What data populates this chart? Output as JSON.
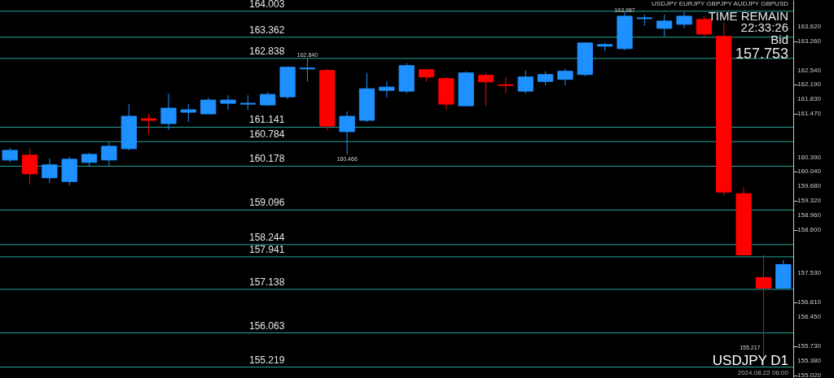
{
  "chart_data": {
    "type": "candlestick",
    "categories": [
      null,
      null,
      null,
      null,
      null,
      null,
      null,
      null,
      null,
      null,
      null,
      null,
      null,
      null,
      null,
      null,
      null,
      null,
      null,
      null,
      null,
      null,
      null,
      null,
      null,
      null,
      null,
      null,
      null,
      null,
      null,
      null,
      null,
      null,
      null,
      null,
      null,
      null,
      null,
      null
    ],
    "ohlc": [
      [
        160.33,
        160.63,
        160.27,
        160.57
      ],
      [
        160.45,
        160.61,
        159.72,
        159.99
      ],
      [
        159.89,
        160.37,
        159.76,
        160.21
      ],
      [
        159.8,
        160.41,
        159.7,
        160.35
      ],
      [
        160.27,
        160.51,
        160.17,
        160.47
      ],
      [
        160.33,
        160.77,
        160.17,
        160.67
      ],
      [
        160.61,
        161.71,
        160.57,
        161.41
      ],
      [
        161.35,
        161.47,
        160.97,
        161.31
      ],
      [
        161.23,
        161.97,
        161.07,
        161.61
      ],
      [
        161.51,
        161.71,
        161.27,
        161.57
      ],
      [
        161.47,
        161.87,
        161.47,
        161.81
      ],
      [
        161.73,
        161.93,
        161.57,
        161.81
      ],
      [
        161.71,
        161.93,
        161.57,
        161.73
      ],
      [
        161.69,
        162.01,
        161.67,
        161.95
      ],
      [
        161.89,
        162.64,
        161.83,
        162.62
      ],
      [
        162.58,
        162.84,
        162.27,
        162.6
      ],
      [
        162.54,
        162.58,
        161.07,
        161.17
      ],
      [
        161.03,
        161.53,
        160.47,
        161.41
      ],
      [
        161.31,
        162.48,
        161.27,
        162.09
      ],
      [
        162.05,
        162.27,
        161.87,
        162.13
      ],
      [
        162.03,
        162.72,
        161.97,
        162.66
      ],
      [
        162.56,
        162.58,
        162.27,
        162.38
      ],
      [
        162.34,
        162.38,
        161.57,
        161.71
      ],
      [
        161.67,
        162.52,
        161.65,
        162.48
      ],
      [
        162.42,
        162.48,
        161.67,
        162.26
      ],
      [
        162.19,
        162.38,
        161.97,
        162.17
      ],
      [
        162.03,
        162.54,
        161.97,
        162.38
      ],
      [
        162.27,
        162.52,
        162.17,
        162.44
      ],
      [
        162.32,
        162.58,
        162.17,
        162.52
      ],
      [
        162.44,
        163.24,
        162.4,
        163.22
      ],
      [
        163.14,
        163.22,
        163.02,
        163.18
      ],
      [
        163.08,
        163.99,
        163.04,
        163.88
      ],
      [
        163.82,
        163.92,
        163.64,
        163.84
      ],
      [
        163.58,
        163.92,
        163.38,
        163.76
      ],
      [
        163.68,
        163.98,
        163.58,
        163.88
      ],
      [
        163.8,
        163.88,
        163.38,
        163.44
      ],
      [
        163.38,
        163.72,
        159.46,
        159.54
      ],
      [
        159.5,
        159.66,
        157.96,
        157.99
      ],
      [
        157.43,
        157.99,
        155.22,
        157.17
      ],
      [
        157.17,
        157.86,
        157.17,
        157.75
      ]
    ],
    "colors": [
      "#1e90ff",
      "#ff0000",
      "#1e90ff",
      "#1e90ff",
      "#1e90ff",
      "#1e90ff",
      "#1e90ff",
      "#ff0000",
      "#1e90ff",
      "#1e90ff",
      "#1e90ff",
      "#1e90ff",
      "#1e90ff",
      "#1e90ff",
      "#1e90ff",
      "#1e90ff",
      "#ff0000",
      "#1e90ff",
      "#1e90ff",
      "#1e90ff",
      "#1e90ff",
      "#ff0000",
      "#ff0000",
      "#1e90ff",
      "#ff0000",
      "#ff0000",
      "#1e90ff",
      "#1e90ff",
      "#1e90ff",
      "#1e90ff",
      "#1e90ff",
      "#1e90ff",
      "#1e90ff",
      "#1e90ff",
      "#1e90ff",
      "#ff0000",
      "#ff0000",
      "#ff0000",
      "#ff0000",
      "#1e90ff"
    ],
    "ylim": [
      154.95,
      164.28
    ],
    "yticks": [
      {
        "value": 163.62,
        "label": "163.620"
      },
      {
        "value": 163.26,
        "label": "163.260"
      },
      {
        "value": 162.54,
        "label": "162.540"
      },
      {
        "value": 162.19,
        "label": "162.190"
      },
      {
        "value": 161.83,
        "label": "161.830"
      },
      {
        "value": 161.47,
        "label": "161.470"
      },
      {
        "value": 160.39,
        "label": "160.390"
      },
      {
        "value": 160.04,
        "label": "160.040"
      },
      {
        "value": 159.68,
        "label": "159.680"
      },
      {
        "value": 159.32,
        "label": "159.320"
      },
      {
        "value": 158.96,
        "label": "158.960"
      },
      {
        "value": 158.6,
        "label": "158.600"
      },
      {
        "value": 157.53,
        "label": "157.530"
      },
      {
        "value": 156.81,
        "label": "156.810"
      },
      {
        "value": 156.45,
        "label": "156.450"
      },
      {
        "value": 155.73,
        "label": "155.730"
      },
      {
        "value": 155.38,
        "label": "155.380"
      },
      {
        "value": 155.02,
        "label": "155.020"
      }
    ],
    "tick_labels": "y",
    "ref_lines": [
      {
        "axis": "y",
        "value": 164.003,
        "label": "164.003",
        "color": "#2aa59a"
      },
      {
        "axis": "y",
        "value": 163.362,
        "label": "163.362",
        "color": "#2aa59a"
      },
      {
        "axis": "y",
        "value": 162.838,
        "label": "162.838",
        "color": "#2aa59a"
      },
      {
        "axis": "y",
        "value": 161.141,
        "label": "161.141",
        "color": "#2aa59a"
      },
      {
        "axis": "y",
        "value": 160.784,
        "label": "160.784",
        "color": "#2aa59a"
      },
      {
        "axis": "y",
        "value": 160.178,
        "label": "160.178",
        "color": "#2aa59a"
      },
      {
        "axis": "y",
        "value": 159.096,
        "label": "159.096",
        "color": "#2aa59a"
      },
      {
        "axis": "y",
        "value": 158.244,
        "label": "158.244",
        "color": "#2aa59a"
      },
      {
        "axis": "y",
        "value": 157.941,
        "label": "157.941",
        "color": "#2aa59a"
      },
      {
        "axis": "y",
        "value": 157.138,
        "label": "157.138",
        "color": "#2aa59a"
      },
      {
        "axis": "y",
        "value": 156.063,
        "label": "156.063",
        "color": "#2aa59a"
      },
      {
        "axis": "y",
        "value": 155.219,
        "label": "155.219",
        "color": "#2aa59a"
      }
    ],
    "annotations": [
      "162.840",
      "163.987",
      "160.466",
      "155.217",
      "USDJPY   EURJPY   GBPJPY   AUDJPY   GBPUSD",
      "TIME REMAIN",
      "22:33:26",
      "Bid",
      "157.753",
      "USDJPY D1",
      "2024.08.22 06:00"
    ]
  }
}
